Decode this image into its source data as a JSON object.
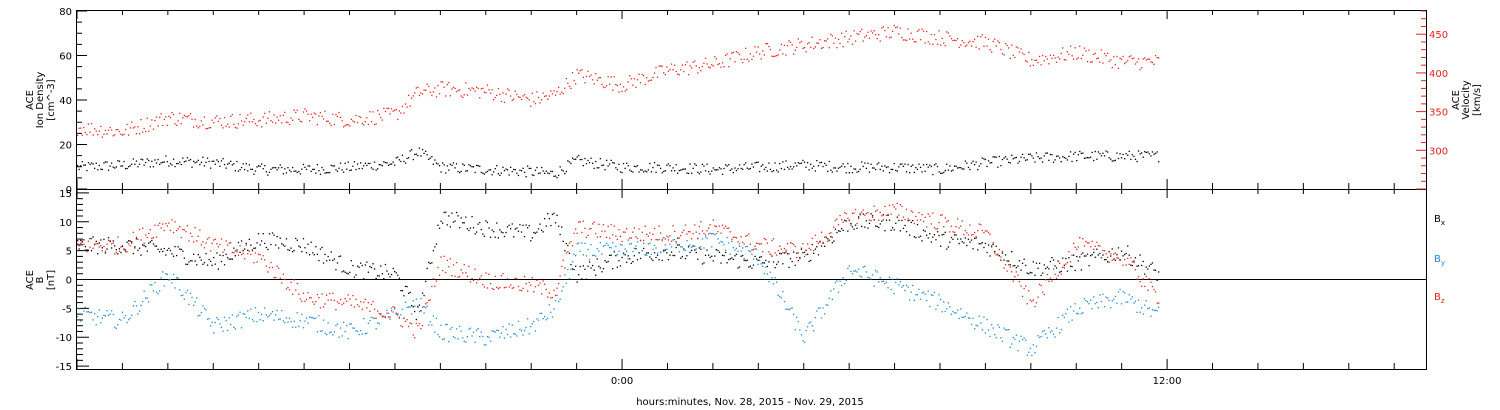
{
  "xaxis": {
    "label": "hours:minutes, Nov. 28, 2015 - Nov. 29, 2015",
    "ticks": [
      {
        "h": 0,
        "label": "0:00"
      },
      {
        "h": 12,
        "label": "12:00"
      }
    ]
  },
  "chart_data": [
    {
      "type": "scatter",
      "panel": "top",
      "ylabel_left": [
        "ACE",
        "Ion Density",
        "[cm^-3]"
      ],
      "ylabel_right": [
        "ACE",
        "Velocity",
        "[km/s]"
      ],
      "ylim_left": [
        0,
        80
      ],
      "yticks_left": [
        0,
        20,
        40,
        60,
        80
      ],
      "ylim_right": [
        250,
        480
      ],
      "yticks_right": [
        300,
        350,
        400,
        450
      ],
      "xlim_hours": [
        -12,
        17.7
      ],
      "grid": false,
      "series": [
        {
          "axis": "left",
          "color": "#000000",
          "x": [
            -12,
            -11,
            -10,
            -9,
            -8,
            -7,
            -6,
            -5,
            -4.5,
            -4,
            -3,
            -2,
            -1.5,
            -1,
            0,
            1,
            2,
            3,
            4,
            5,
            6,
            7,
            8,
            9,
            10,
            11,
            11.8
          ],
          "y": [
            10,
            11,
            13,
            12,
            9,
            9,
            10,
            12,
            17,
            10,
            9,
            8,
            7,
            13,
            10,
            10,
            9,
            10,
            11,
            10,
            10,
            9,
            12,
            14,
            15,
            15,
            15
          ],
          "noise": 2.5
        },
        {
          "axis": "right",
          "color": "#e8221c",
          "x": [
            -12,
            -11,
            -10,
            -9,
            -8,
            -7,
            -6,
            -5,
            -4.5,
            -4,
            -3,
            -2,
            -1.5,
            -1,
            0,
            1,
            2,
            3,
            4,
            5,
            6,
            7,
            8,
            9,
            10,
            11,
            11.8
          ],
          "y": [
            330,
            325,
            343,
            338,
            340,
            345,
            340,
            347,
            375,
            380,
            377,
            366,
            372,
            398,
            385,
            404,
            412,
            428,
            437,
            446,
            454,
            446,
            440,
            417,
            427,
            415,
            415
          ],
          "noise": 10
        }
      ]
    },
    {
      "type": "scatter",
      "panel": "bottom",
      "ylabel_left": [
        "ACE",
        "B",
        "[nT]"
      ],
      "ylim": [
        -15.5,
        15.5
      ],
      "yticks": [
        -15,
        -10,
        -5,
        0,
        5,
        10,
        15
      ],
      "zero_line": true,
      "xlim_hours": [
        -12,
        17.7
      ],
      "grid": false,
      "series": [
        {
          "name": "Bx",
          "label_main": "B",
          "label_sub": "x",
          "color": "#000000",
          "x": [
            -12,
            -11,
            -10,
            -9,
            -8,
            -7,
            -6,
            -5,
            -4.5,
            -4,
            -3,
            -2,
            -1.5,
            -1,
            0,
            1,
            2,
            3,
            4,
            5,
            6,
            7,
            8,
            9,
            10,
            11,
            11.8
          ],
          "y": [
            6,
            6,
            5,
            3,
            7,
            6,
            2,
            1,
            -6,
            11,
            9,
            8,
            11,
            1,
            4,
            5,
            4,
            3,
            4,
            10,
            10,
            7,
            6,
            2,
            3,
            5,
            1
          ],
          "noise": 1.5
        },
        {
          "name": "By",
          "label_main": "B",
          "label_sub": "y",
          "color": "#1f8ad9",
          "x": [
            -12,
            -11,
            -10,
            -9,
            -8,
            -7,
            -6,
            -5,
            -4.5,
            -4,
            -3,
            -2,
            -1.5,
            -1,
            0,
            1,
            2,
            3,
            4,
            5,
            6,
            7,
            8,
            9,
            10,
            11,
            11.8
          ],
          "y": [
            -6,
            -7,
            1,
            -8,
            -6,
            -7,
            -9,
            -6,
            -4,
            -9,
            -10,
            -8,
            -5,
            5,
            5,
            6,
            7,
            4,
            -10,
            2,
            -1,
            -4,
            -8,
            -12,
            -5,
            -3,
            -6
          ],
          "noise": 1.5
        },
        {
          "name": "Bz",
          "label_main": "B",
          "label_sub": "z",
          "color": "#e8221c",
          "x": [
            -12,
            -11,
            -10,
            -9,
            -8,
            -7,
            -6,
            -5,
            -4.5,
            -4,
            -3,
            -2,
            -1.5,
            -1,
            0,
            1,
            2,
            3,
            4,
            5,
            6,
            7,
            8,
            9,
            10,
            11,
            11.8
          ],
          "y": [
            6,
            6,
            10,
            6,
            4,
            -3,
            -4,
            -6,
            -9,
            3,
            0,
            -1,
            -2,
            9,
            8,
            8,
            9,
            6,
            5,
            11,
            12,
            10,
            8,
            -4,
            6,
            4,
            -3
          ],
          "noise": 1.5
        }
      ]
    }
  ]
}
